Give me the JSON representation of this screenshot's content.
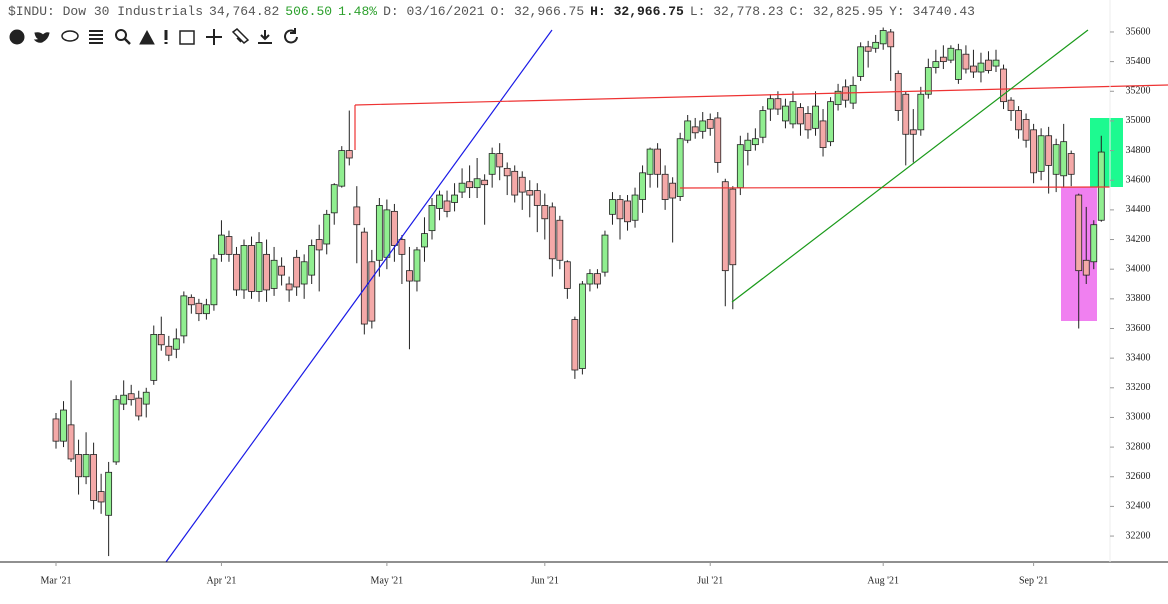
{
  "header": {
    "symbol": "$INDU: Dow 30 Industrials",
    "last": "34,764.82",
    "change": "506.50",
    "change_pct": "1.48%",
    "fields": [
      {
        "label": "D:",
        "value": "03/16/2021"
      },
      {
        "label": "O:",
        "value": "32,966.75"
      },
      {
        "label": "H:",
        "value": "32,966.75"
      },
      {
        "label": "L:",
        "value": "32,778.23"
      },
      {
        "label": "C:",
        "value": "32,825.95"
      },
      {
        "label": "Y:",
        "value": "34740.43"
      }
    ]
  },
  "chart_data": {
    "type": "candlestick",
    "up_color": "#90ee90",
    "down_color": "#f4a9a8",
    "categories": [
      "Mar '21",
      null,
      null,
      null,
      null,
      null,
      null,
      null,
      null,
      null,
      null,
      null,
      null,
      null,
      null,
      null,
      null,
      null,
      null,
      null,
      null,
      null,
      "Apr '21",
      null,
      null,
      null,
      null,
      null,
      null,
      null,
      null,
      null,
      null,
      null,
      null,
      null,
      null,
      null,
      null,
      null,
      null,
      null,
      null,
      null,
      "May '21",
      null,
      null,
      null,
      null,
      null,
      null,
      null,
      null,
      null,
      null,
      null,
      null,
      null,
      null,
      null,
      null,
      null,
      null,
      null,
      null,
      "Jun '21",
      null,
      null,
      null,
      null,
      null,
      null,
      null,
      null,
      null,
      null,
      null,
      null,
      null,
      null,
      null,
      null,
      null,
      null,
      null,
      null,
      null,
      "Jul '21",
      null,
      null,
      null,
      null,
      null,
      null,
      null,
      null,
      null,
      null,
      null,
      null,
      null,
      null,
      null,
      null,
      null,
      null,
      null,
      null,
      null,
      null,
      "Aug '21",
      null,
      null,
      null,
      null,
      null,
      null,
      null,
      null,
      null,
      null,
      null,
      null,
      null,
      null,
      null,
      null,
      null,
      null,
      null,
      "Sep '21",
      null,
      null,
      null,
      null,
      null,
      null,
      null,
      null,
      null
    ],
    "open": [
      32990,
      32840,
      32950,
      32750,
      32600,
      32750,
      32500,
      32340,
      32700,
      33090,
      33160,
      33130,
      33090,
      33250,
      33560,
      33480,
      33460,
      33550,
      33810,
      33770,
      33700,
      33760,
      34100,
      34220,
      34100,
      33860,
      34160,
      33850,
      34100,
      33870,
      34020,
      33900,
      34080,
      33900,
      33960,
      34200,
      34170,
      34380,
      34560,
      34800,
      34420,
      34250,
      34050,
      34060,
      34080,
      34390,
      34200,
      33990,
      33920,
      34150,
      34260,
      34410,
      34460,
      34450,
      34520,
      34590,
      34550,
      34600,
      34640,
      34780,
      34680,
      34660,
      34620,
      34530,
      34530,
      34430,
      34420,
      34330,
      34050,
      33660,
      33330,
      33900,
      33970,
      33980,
      34370,
      34470,
      34460,
      34330,
      34470,
      34640,
      34810,
      34640,
      34580,
      34490,
      34870,
      34960,
      34930,
      35010,
      35020,
      34590,
      34540,
      34550,
      34800,
      34840,
      34890,
      35080,
      35150,
      35000,
      34980,
      35090,
      35050,
      34950,
      35000,
      34860,
      35110,
      35230,
      35120,
      35300,
      35500,
      35490,
      35520,
      35600,
      35320,
      35180,
      34940,
      34940,
      35180,
      35360,
      35430,
      35410,
      35280,
      35450,
      35370,
      35330,
      35410,
      35370,
      35350,
      35140,
      35070,
      35010,
      34940,
      34660,
      34900,
      34640,
      34630,
      34780,
      34500,
      34060,
      34050,
      34330
    ],
    "high": [
      33030,
      33110,
      33250,
      32850,
      32900,
      32830,
      32620,
      32700,
      33150,
      33250,
      33220,
      33180,
      33200,
      33620,
      33680,
      33550,
      33600,
      33850,
      33830,
      33800,
      33800,
      34100,
      34330,
      34260,
      34150,
      34200,
      34220,
      34250,
      34200,
      34150,
      34080,
      33950,
      34130,
      34100,
      34200,
      34300,
      34400,
      34580,
      34830,
      35070,
      34560,
      34280,
      34130,
      34480,
      34470,
      34440,
      34230,
      34150,
      34150,
      34350,
      34480,
      34530,
      34530,
      34580,
      34680,
      34700,
      34750,
      34640,
      34820,
      34850,
      34720,
      34700,
      34660,
      34600,
      34580,
      34510,
      34450,
      34360,
      34060,
      33680,
      33920,
      34000,
      34000,
      34260,
      34520,
      34500,
      34500,
      34550,
      34700,
      34820,
      34850,
      34700,
      34620,
      34920,
      35040,
      35020,
      35060,
      35050,
      35060,
      34610,
      34560,
      34900,
      34920,
      34950,
      35100,
      35180,
      35200,
      35150,
      35200,
      35120,
      35100,
      35200,
      35080,
      35160,
      35250,
      35280,
      35300,
      35530,
      35540,
      35580,
      35630,
      35620,
      35340,
      35200,
      35080,
      35230,
      35420,
      35480,
      35510,
      35510,
      35520,
      35510,
      35480,
      35460,
      35470,
      35480,
      35380,
      35160,
      35100,
      35050,
      34980,
      34950,
      34960,
      34880,
      34980,
      34800,
      34510,
      34420,
      34330,
      34900
    ],
    "low": [
      32790,
      32800,
      32700,
      32480,
      32550,
      32380,
      32350,
      32065,
      32680,
      33050,
      33080,
      32980,
      33000,
      33220,
      33450,
      33380,
      33400,
      33500,
      33700,
      33650,
      33660,
      33720,
      34050,
      34050,
      33820,
      33800,
      33800,
      33780,
      33780,
      33820,
      33890,
      33780,
      33820,
      33800,
      33900,
      33850,
      34100,
      34300,
      34550,
      34700,
      34040,
      33560,
      33600,
      33950,
      34000,
      34050,
      33900,
      33460,
      33850,
      34050,
      34200,
      34330,
      34350,
      34390,
      34480,
      34480,
      34480,
      34300,
      34550,
      34600,
      34500,
      34450,
      34400,
      34350,
      34250,
      34200,
      33950,
      34000,
      33800,
      33260,
      33290,
      33850,
      33870,
      33950,
      34300,
      34200,
      34260,
      34280,
      34380,
      34550,
      34550,
      34400,
      34180,
      34460,
      34850,
      34880,
      34880,
      34900,
      34650,
      33750,
      33730,
      34500,
      34700,
      34800,
      34850,
      35000,
      35040,
      34950,
      34950,
      34900,
      34880,
      34900,
      34760,
      34830,
      35070,
      35090,
      35080,
      35270,
      35360,
      35460,
      35480,
      35270,
      35000,
      34700,
      34720,
      34900,
      35150,
      35320,
      35350,
      35390,
      35250,
      35320,
      35290,
      35260,
      35320,
      35330,
      35080,
      35000,
      34880,
      34820,
      34580,
      34600,
      34510,
      34520,
      34550,
      34560,
      33600,
      33900,
      34000,
      34320
    ],
    "close": [
      32840,
      33050,
      32720,
      32600,
      32750,
      32440,
      32430,
      32630,
      33120,
      33150,
      33120,
      33010,
      33170,
      33560,
      33490,
      33420,
      33530,
      33820,
      33760,
      33700,
      33760,
      34070,
      34230,
      34100,
      33860,
      34160,
      33850,
      34180,
      33860,
      34060,
      33960,
      33860,
      33880,
      34050,
      34160,
      34130,
      34370,
      34570,
      34800,
      34750,
      34300,
      33630,
      33650,
      34430,
      34400,
      34160,
      34100,
      33920,
      34130,
      34240,
      34430,
      34500,
      34390,
      34500,
      34580,
      34550,
      34610,
      34570,
      34780,
      34690,
      34630,
      34500,
      34520,
      34500,
      34430,
      34340,
      34070,
      34060,
      33870,
      33320,
      33900,
      33970,
      33900,
      34230,
      34470,
      34340,
      34320,
      34500,
      34650,
      34810,
      34640,
      34470,
      34480,
      34880,
      35000,
      34920,
      35000,
      34950,
      34720,
      33990,
      34030,
      34840,
      34870,
      34880,
      35070,
      35150,
      35080,
      35100,
      35130,
      34980,
      34940,
      35100,
      34820,
      35130,
      35200,
      35140,
      35240,
      35500,
      35470,
      35530,
      35610,
      35500,
      35070,
      34910,
      34910,
      35180,
      35360,
      35400,
      35400,
      35490,
      35480,
      35350,
      35330,
      35390,
      35340,
      35410,
      35130,
      35070,
      34940,
      34870,
      34650,
      34900,
      34700,
      34840,
      34860,
      34640,
      33990,
      33960,
      34300,
      34790
    ],
    "ylim": [
      32025,
      35647
    ],
    "yticks": [
      32200,
      32400,
      32600,
      32800,
      33000,
      33200,
      33400,
      33600,
      33800,
      34000,
      34200,
      34400,
      34600,
      34800,
      35000,
      35200,
      35400,
      35600
    ]
  }
}
